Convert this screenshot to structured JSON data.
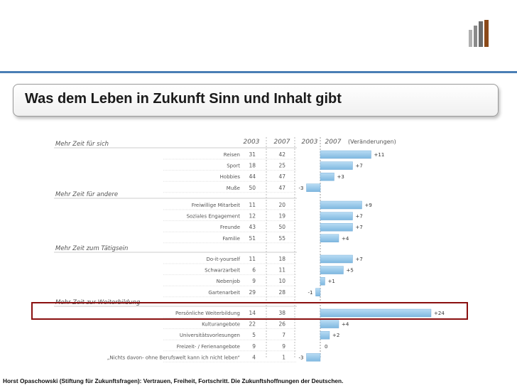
{
  "title": "Was dem Leben in Zukunft Sinn und Inhalt gibt",
  "footer": "Horst Opaschowski (Stiftung für Zukunftsfragen): Vertrauen, Freiheit, Fortschritt. Die Zukunftshoffnungen der Deutschen.",
  "colors": {
    "accent": "#4a7fb5",
    "highlight": "#8a1010",
    "bar": "#7fb8e0"
  },
  "chart_data": {
    "type": "bar",
    "column_headers": {
      "year1": "2003",
      "year2": "2007",
      "axis_year1": "2003",
      "axis_year2": "2007",
      "change": "(Veränderungen)"
    },
    "groups": [
      {
        "name": "Mehr Zeit für sich",
        "rows": [
          {
            "label": "Reisen",
            "v2003": "31",
            "v2007": "42",
            "change": 11,
            "change_label": "+11"
          },
          {
            "label": "Sport",
            "v2003": "18",
            "v2007": "25",
            "change": 7,
            "change_label": "+7"
          },
          {
            "label": "Hobbies",
            "v2003": "44",
            "v2007": "47",
            "change": 3,
            "change_label": "+3"
          },
          {
            "label": "Muße",
            "v2003": "50",
            "v2007": "47",
            "change": -3,
            "change_label": "-3"
          }
        ]
      },
      {
        "name": "Mehr Zeit für andere",
        "rows": [
          {
            "label": "Freiwillige Mitarbeit",
            "v2003": "11",
            "v2007": "20",
            "change": 9,
            "change_label": "+9"
          },
          {
            "label": "Soziales Engagement",
            "v2003": "12",
            "v2007": "19",
            "change": 7,
            "change_label": "+7"
          },
          {
            "label": "Freunde",
            "v2003": "43",
            "v2007": "50",
            "change": 7,
            "change_label": "+7"
          },
          {
            "label": "Familie",
            "v2003": "51",
            "v2007": "55",
            "change": 4,
            "change_label": "+4"
          }
        ]
      },
      {
        "name": "Mehr Zeit zum Tätigsein",
        "rows": [
          {
            "label": "Do-it-yourself",
            "v2003": "11",
            "v2007": "18",
            "change": 7,
            "change_label": "+7"
          },
          {
            "label": "Schwarzarbeit",
            "v2003": "6",
            "v2007": "11",
            "change": 5,
            "change_label": "+5"
          },
          {
            "label": "Nebenjob",
            "v2003": "9",
            "v2007": "10",
            "change": 1,
            "change_label": "+1"
          },
          {
            "label": "Gartenarbeit",
            "v2003": "29",
            "v2007": "28",
            "change": -1,
            "change_label": "-1"
          }
        ]
      },
      {
        "name": "Mehr Zeit zur Weiterbildung",
        "rows": [
          {
            "label": "Persönliche Weiterbildung",
            "v2003": "14",
            "v2007": "38",
            "change": 24,
            "change_label": "+24"
          },
          {
            "label": "Kulturangebote",
            "v2003": "22",
            "v2007": "26",
            "change": 4,
            "change_label": "+4"
          },
          {
            "label": "Universitätsvorlesungen",
            "v2003": "5",
            "v2007": "7",
            "change": 2,
            "change_label": "+2"
          },
          {
            "label": "Freizeit- / Ferienangebote",
            "v2003": "9",
            "v2007": "9",
            "change": 0,
            "change_label": "0"
          },
          {
            "label": "„Nichts davon- ohne Berufswelt kann ich nicht leben“",
            "v2003": "4",
            "v2007": "1",
            "change": -3,
            "change_label": "-3"
          }
        ]
      }
    ]
  }
}
